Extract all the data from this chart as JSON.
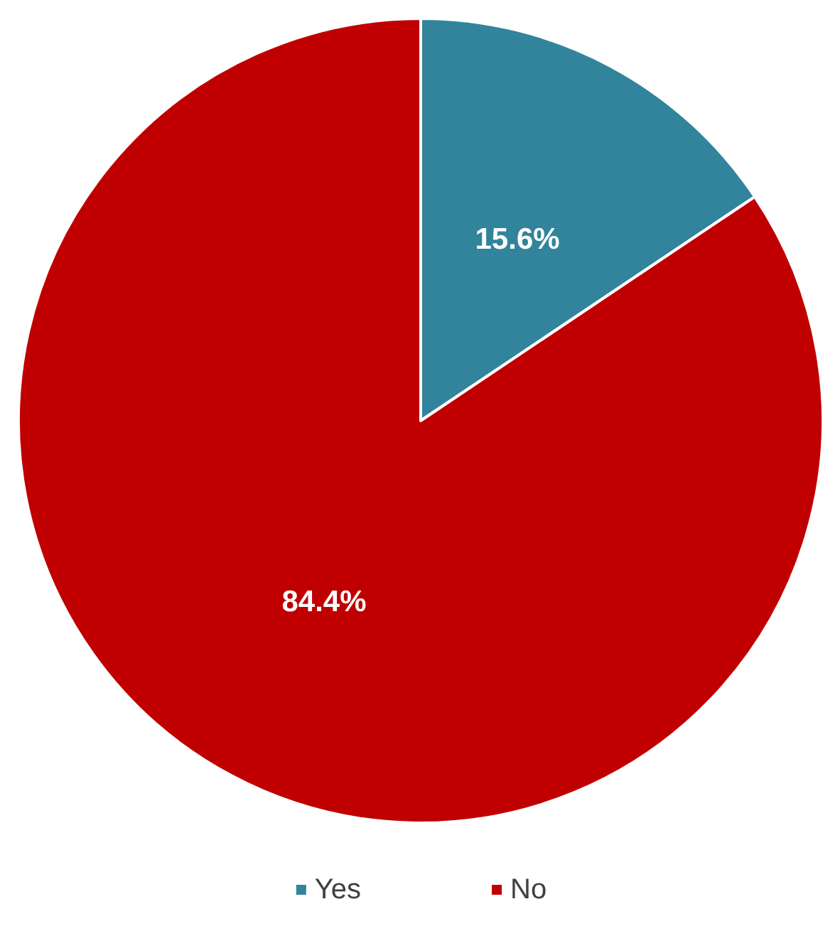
{
  "chart_data": {
    "type": "pie",
    "categories": [
      "Yes",
      "No"
    ],
    "values": [
      15.6,
      84.4
    ],
    "colors": [
      "#31849b",
      "#c00000"
    ],
    "value_labels": [
      "15.6%",
      "84.4%"
    ],
    "legend": "bottom"
  }
}
